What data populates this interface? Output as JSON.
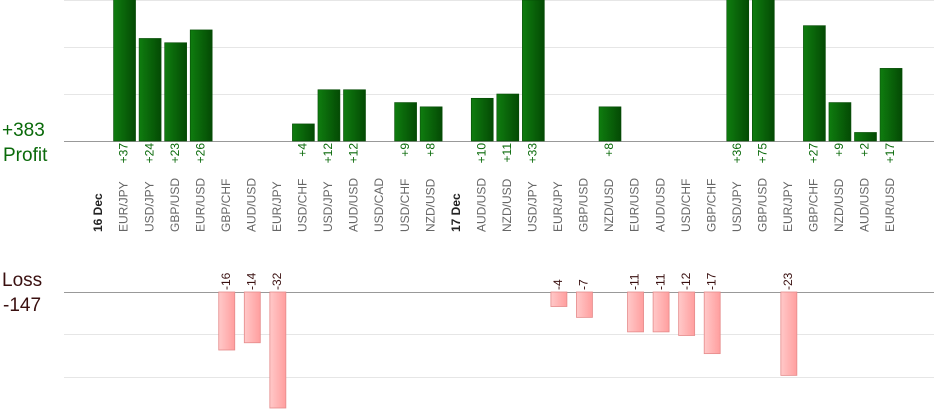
{
  "summary": {
    "profit_total": "+383",
    "profit_label": "Profit",
    "loss_label": "Loss",
    "loss_total": "-147"
  },
  "colors": {
    "profit_bar": "#0b6e0b",
    "profit_bar_dark": "#054a05",
    "profit_text": "#0a6a0a",
    "loss_bar": "#ffb3b3",
    "loss_bar_border": "#e58a8a",
    "loss_text": "#3a1010",
    "grid": "#e6e6e6",
    "axis": "#999999",
    "tick_text": "#666666"
  },
  "chart_data": {
    "type": "bar",
    "groups": [
      {
        "date": "16 Dec",
        "trades": [
          {
            "pair": "EUR/JPY",
            "value": 37
          },
          {
            "pair": "USD/JPY",
            "value": 24
          },
          {
            "pair": "GBP/USD",
            "value": 23
          },
          {
            "pair": "EUR/USD",
            "value": 26
          },
          {
            "pair": "GBP/CHF",
            "value": -16
          },
          {
            "pair": "AUD/USD",
            "value": -14
          },
          {
            "pair": "EUR/JPY",
            "value": -32
          },
          {
            "pair": "USD/CHF",
            "value": 4
          },
          {
            "pair": "USD/JPY",
            "value": 12
          },
          {
            "pair": "AUD/USD",
            "value": 12
          },
          {
            "pair": "USD/CAD",
            "value": null
          },
          {
            "pair": "USD/CHF",
            "value": 9
          },
          {
            "pair": "NZD/USD",
            "value": 8
          }
        ]
      },
      {
        "date": "17 Dec",
        "trades": [
          {
            "pair": "AUD/USD",
            "value": 10
          },
          {
            "pair": "NZD/USD",
            "value": 11
          },
          {
            "pair": "USD/JPY",
            "value": 33
          },
          {
            "pair": "EUR/JPY",
            "value": -4
          },
          {
            "pair": "GBP/USD",
            "value": -7
          },
          {
            "pair": "NZD/USD",
            "value": 8
          },
          {
            "pair": "EUR/USD",
            "value": -11
          },
          {
            "pair": "AUD/USD",
            "value": -11
          },
          {
            "pair": "USD/CHF",
            "value": -12
          },
          {
            "pair": "GBP/CHF",
            "value": -17
          },
          {
            "pair": "USD/JPY",
            "value": 36
          },
          {
            "pair": "GBP/USD",
            "value": 75
          },
          {
            "pair": "EUR/JPY",
            "value": -23
          },
          {
            "pair": "GBP/CHF",
            "value": 27
          },
          {
            "pair": "NZD/USD",
            "value": 9
          },
          {
            "pair": "AUD/USD",
            "value": 2
          },
          {
            "pair": "EUR/USD",
            "value": 17
          }
        ]
      }
    ],
    "profit_axis_max_visible": 33,
    "loss_axis_min_visible": -32,
    "grid": true
  }
}
